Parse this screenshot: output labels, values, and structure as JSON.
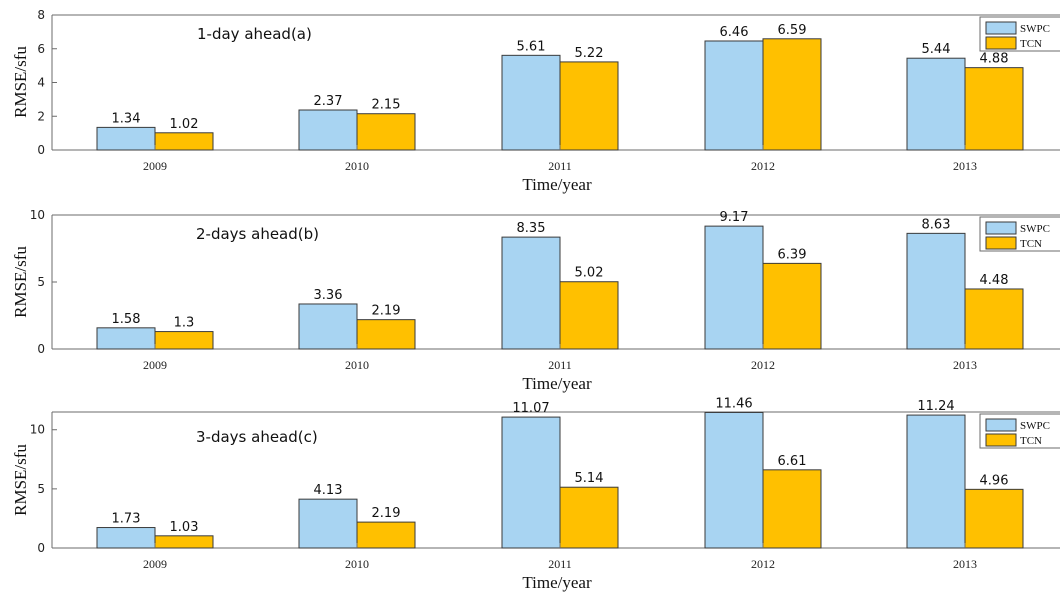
{
  "chart_data": [
    {
      "type": "bar",
      "annotation": "1-day ahead(a)",
      "categories": [
        "2009",
        "2010",
        "2011",
        "2012",
        "2013"
      ],
      "series": [
        {
          "name": "SWPC",
          "values": [
            1.34,
            2.37,
            5.61,
            6.46,
            5.44
          ],
          "color": "#a8d4f2"
        },
        {
          "name": "TCN",
          "values": [
            1.02,
            2.15,
            5.22,
            6.59,
            4.88
          ],
          "color": "#ffc000"
        }
      ],
      "value_labels": [
        [
          "1.34",
          "2.37",
          "5.61",
          "6.46",
          "5.44"
        ],
        [
          "1.02",
          "2.15",
          "5.22",
          "6.59",
          "4.88"
        ]
      ],
      "xlabel": "Time/year",
      "ylabel": "RMSE/sfu",
      "ylim": [
        0,
        8
      ],
      "yticks": [
        0,
        2,
        4,
        6,
        8
      ],
      "legend": "top-right",
      "grid": false
    },
    {
      "type": "bar",
      "annotation": "2-days ahead(b)",
      "categories": [
        "2009",
        "2010",
        "2011",
        "2012",
        "2013"
      ],
      "series": [
        {
          "name": "SWPC",
          "values": [
            1.58,
            3.36,
            8.35,
            9.17,
            8.63
          ],
          "color": "#a8d4f2"
        },
        {
          "name": "TCN",
          "values": [
            1.3,
            2.19,
            5.02,
            6.39,
            4.48
          ],
          "color": "#ffc000"
        }
      ],
      "value_labels": [
        [
          "1.58",
          "3.36",
          "8.35",
          "9.17",
          "8.63"
        ],
        [
          "1.3",
          "2.19",
          "5.02",
          "6.39",
          "4.48"
        ]
      ],
      "xlabel": "Time/year",
      "ylabel": "RMSE/sfu",
      "ylim": [
        0,
        10
      ],
      "yticks": [
        0,
        5,
        10
      ],
      "legend": "top-right",
      "grid": false
    },
    {
      "type": "bar",
      "annotation": "3-days ahead(c)",
      "categories": [
        "2009",
        "2010",
        "2011",
        "2012",
        "2013"
      ],
      "series": [
        {
          "name": "SWPC",
          "values": [
            1.73,
            4.13,
            11.07,
            11.46,
            11.24
          ],
          "color": "#a8d4f2"
        },
        {
          "name": "TCN",
          "values": [
            1.03,
            2.19,
            5.14,
            6.61,
            4.96
          ],
          "color": "#ffc000"
        }
      ],
      "value_labels": [
        [
          "1.73",
          "4.13",
          "11.07",
          "11.46",
          "11.24"
        ],
        [
          "1.03",
          "2.19",
          "5.14",
          "6.61",
          "4.96"
        ]
      ],
      "xlabel": "Time/year",
      "ylabel": "RMSE/sfu",
      "ylim": [
        0,
        11.5
      ],
      "yticks": [
        0,
        5,
        10
      ],
      "legend": "top-right",
      "grid": false
    }
  ]
}
